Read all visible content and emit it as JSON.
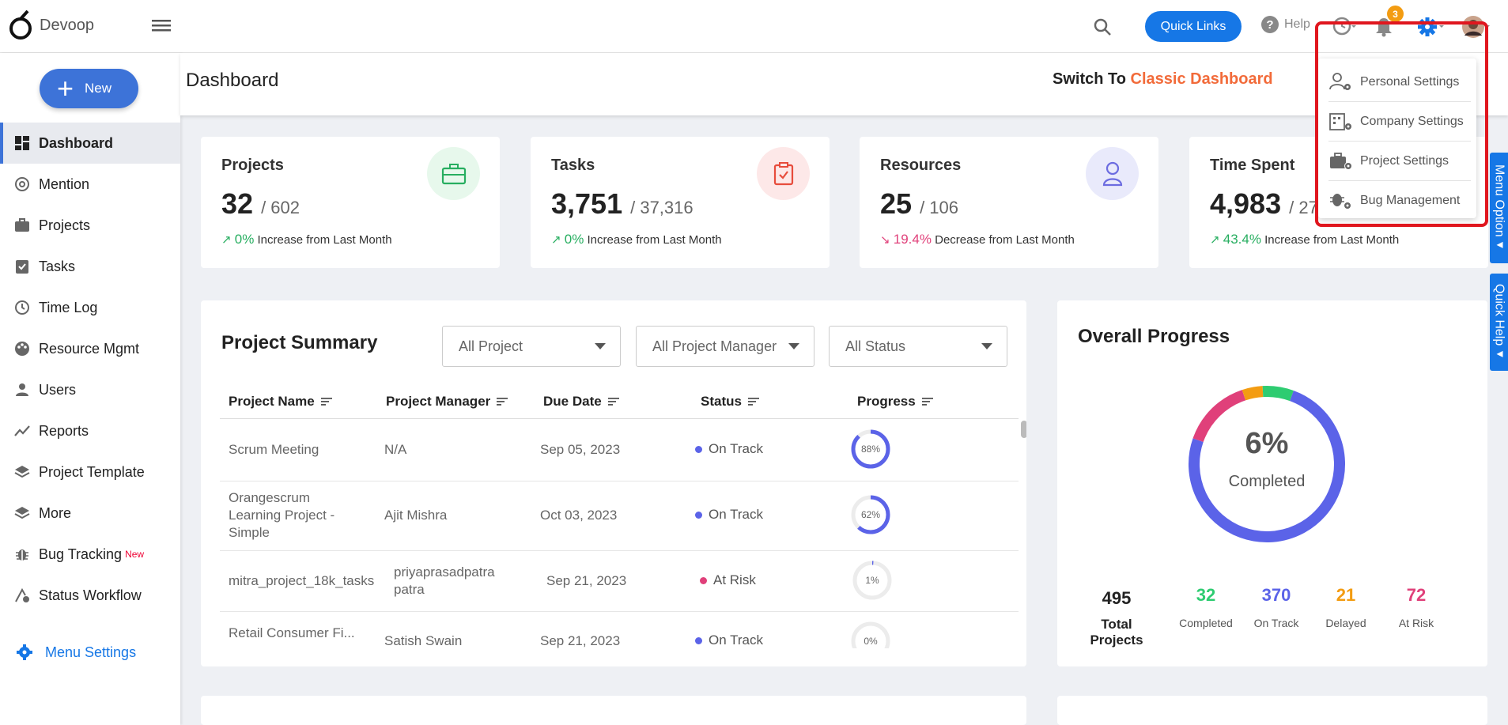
{
  "app": {
    "name": "Devoop"
  },
  "topbar": {
    "quick_links": "Quick Links",
    "help": "Help",
    "notification_count": "3"
  },
  "sidebar": {
    "new_label": "New",
    "items": [
      {
        "label": "Dashboard",
        "icon": "dashboard-icon",
        "active": true
      },
      {
        "label": "Mention",
        "icon": "at-icon"
      },
      {
        "label": "Projects",
        "icon": "briefcase-icon"
      },
      {
        "label": "Tasks",
        "icon": "clipboard-check-icon"
      },
      {
        "label": "Time Log",
        "icon": "clock-icon"
      },
      {
        "label": "Resource Mgmt",
        "icon": "palette-icon"
      },
      {
        "label": "Users",
        "icon": "user-icon"
      },
      {
        "label": "Reports",
        "icon": "trend-line-icon"
      },
      {
        "label": "Project Template",
        "icon": "layers-icon"
      },
      {
        "label": "More",
        "icon": "layers-icon"
      },
      {
        "label": "Bug Tracking",
        "icon": "bug-icon",
        "badge": "New"
      },
      {
        "label": "Status Workflow",
        "icon": "workflow-icon"
      }
    ],
    "menu_settings": "Menu Settings"
  },
  "header": {
    "title": "Dashboard",
    "switch_prefix": "Switch To",
    "switch_link": "Classic Dashboard"
  },
  "cards": [
    {
      "title": "Projects",
      "value": "32",
      "total": "/ 602",
      "change": "0%",
      "change_text": "Increase from Last Month",
      "dir": "up",
      "color": "#27ae60"
    },
    {
      "title": "Tasks",
      "value": "3,751",
      "total": "/ 37,316",
      "change": "0%",
      "change_text": "Increase from Last Month",
      "dir": "up",
      "color": "#e74c3c"
    },
    {
      "title": "Resources",
      "value": "25",
      "total": "/ 106",
      "change": "19.4%",
      "change_text": "Decrease from Last Month",
      "dir": "down",
      "color": "#6c6ce0"
    },
    {
      "title": "Time Spent",
      "value": "4,983",
      "total": "/ 27",
      "change": "43.4%",
      "change_text": "Increase from Last Month",
      "dir": "up",
      "color": "#27ae60"
    }
  ],
  "project_summary": {
    "title": "Project Summary",
    "filters": [
      "All Project",
      "All Project Manager",
      "All Status"
    ],
    "columns": [
      "Project Name",
      "Project Manager",
      "Due Date",
      "Status",
      "Progress"
    ],
    "rows": [
      {
        "name": "Scrum Meeting",
        "manager": "N/A",
        "due": "Sep 05, 2023",
        "status": "On Track",
        "status_color": "#5b63e8",
        "progress": 88,
        "progress_label": "88%"
      },
      {
        "name": "Orangescrum Learning Project - Simple",
        "manager": "Ajit Mishra",
        "due": "Oct 03, 2023",
        "status": "On Track",
        "status_color": "#5b63e8",
        "progress": 62,
        "progress_label": "62%"
      },
      {
        "name": "mitra_project_18k_tasks",
        "manager": "priyaprasadpatra patra",
        "due": "Sep 21, 2023",
        "status": "At Risk",
        "status_color": "#e0407a",
        "progress": 1,
        "progress_label": "1%"
      },
      {
        "name": "Retail Consumer Fi...",
        "manager": "Satish Swain",
        "due": "Sep 21, 2023",
        "status": "On Track",
        "status_color": "#5b63e8",
        "progress": 0,
        "progress_label": "0%"
      }
    ]
  },
  "overall_progress": {
    "title": "Overall Progress",
    "percent": "6%",
    "label": "Completed",
    "segments": [
      {
        "name": "Completed",
        "value": 32,
        "color": "#2ecc71"
      },
      {
        "name": "On Track",
        "value": 370,
        "color": "#5b63e8"
      },
      {
        "name": "Delayed",
        "value": 21,
        "color": "#f39c12"
      },
      {
        "name": "At Risk",
        "value": 72,
        "color": "#e0407a"
      }
    ],
    "stats": [
      {
        "value": "495",
        "label": "Total Projects",
        "color": "#222"
      },
      {
        "value": "32",
        "label": "Completed",
        "color": "#2ecc71"
      },
      {
        "value": "370",
        "label": "On Track",
        "color": "#5b63e8"
      },
      {
        "value": "21",
        "label": "Delayed",
        "color": "#f39c12"
      },
      {
        "value": "72",
        "label": "At Risk",
        "color": "#e0407a"
      }
    ]
  },
  "settings_menu": {
    "items": [
      "Personal Settings",
      "Company Settings",
      "Project Settings",
      "Bug Management"
    ]
  },
  "side_tabs": {
    "menu_option": "Menu Option",
    "quick_help": "Quick Help"
  }
}
